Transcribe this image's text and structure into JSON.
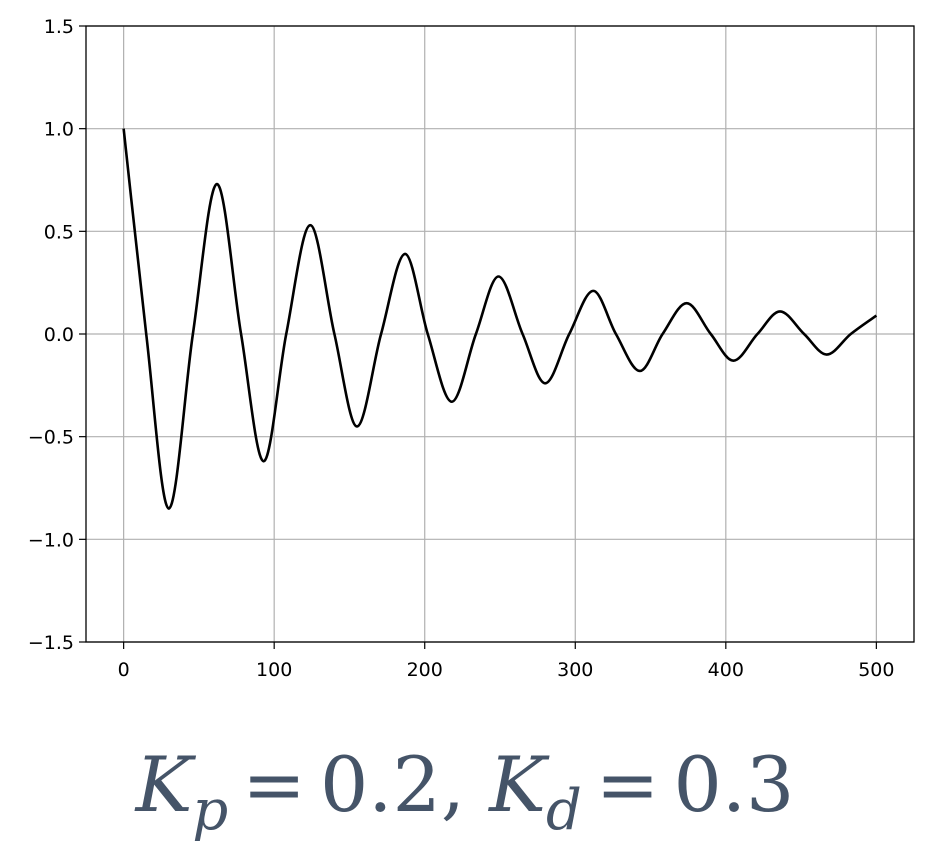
{
  "colors": {
    "line": "#000000",
    "grid": "#b0b0b0",
    "axes": "#000000",
    "caption": "#455468"
  },
  "chart_data": {
    "type": "line",
    "title": "",
    "xlabel": "",
    "ylabel": "",
    "xlim": [
      -25,
      525
    ],
    "ylim": [
      -1.5,
      1.5
    ],
    "grid": true,
    "x_ticks": [
      0,
      100,
      200,
      300,
      400,
      500
    ],
    "x_tick_labels": [
      "0",
      "100",
      "200",
      "300",
      "400",
      "500"
    ],
    "y_ticks": [
      1.5,
      1.0,
      0.5,
      0.0,
      -0.5,
      -1.0,
      -1.5
    ],
    "y_tick_labels": [
      "1.5",
      "1.0",
      "0.5",
      "0.0",
      "−0.5",
      "−1.0",
      "−1.5"
    ],
    "series": [
      {
        "x": [
          0,
          15,
          30,
          46,
          62,
          78,
          93,
          108,
          124,
          140,
          155,
          171,
          187,
          202,
          218,
          234,
          249,
          265,
          280,
          296,
          312,
          327,
          343,
          358,
          374,
          390,
          405,
          421,
          436,
          452,
          467,
          483,
          500
        ],
        "y": [
          1.0,
          0.0,
          -0.85,
          0.0,
          0.73,
          0.0,
          -0.62,
          0.0,
          0.53,
          0.0,
          -0.45,
          0.0,
          0.39,
          0.0,
          -0.33,
          0.0,
          0.28,
          0.0,
          -0.24,
          0.0,
          0.21,
          0.0,
          -0.18,
          0.0,
          0.15,
          0.0,
          -0.13,
          0.0,
          0.11,
          0.0,
          -0.1,
          0.0,
          0.09
        ]
      }
    ]
  },
  "caption": {
    "k_letter": "K",
    "p_sub": "p",
    "eq": "=",
    "kp_value": "0.2,",
    "d_sub": "d",
    "kd_value": "0.3"
  }
}
